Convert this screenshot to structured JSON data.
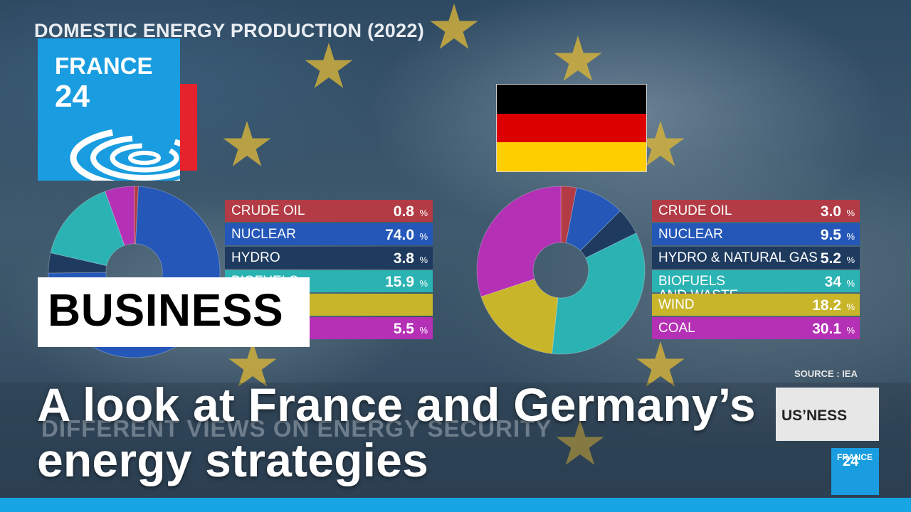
{
  "slide_title": "DOMESTIC ENERGY PRODUCTION (2022)",
  "logo": {
    "line1": "FRANCE",
    "line2": "24"
  },
  "mini_logo": {
    "line1": "FRANCE",
    "line2": "24"
  },
  "category_badge": "BUSINESS",
  "background_programme_label": "DIFFERENT VIEWS ON ENERGY SECURITY",
  "background_business_label": "US’NESS",
  "source": "SOURCE : IEA",
  "headline": "A look at France and Germany’s energy strategies",
  "colors": {
    "crude_oil": "#b23b45",
    "nuclear": "#2457b8",
    "hydro": "#1e3a5f",
    "biofuels": "#2bb3b3",
    "wind": "#c8b52a",
    "coal": "#b430b4",
    "accent": "#17a6e3"
  },
  "germany_flag": [
    "#000000",
    "#dd0000",
    "#ffce00"
  ],
  "chart_data": [
    {
      "type": "pie",
      "title": "",
      "categories": [
        "CRUDE OIL",
        "NUCLEAR",
        "HYDRO",
        "BIOFUELS",
        "",
        ""
      ],
      "values": [
        0.8,
        74.0,
        3.8,
        15.9,
        null,
        5.5
      ],
      "display": [
        "0.8",
        "74.0",
        "3.8",
        "15.9",
        "",
        "5.5"
      ],
      "unit": "%"
    },
    {
      "type": "pie",
      "title": "",
      "categories": [
        "CRUDE OIL",
        "NUCLEAR",
        "HYDRO & NATURAL GAS",
        "BIOFUELS AND WASTE",
        "WIND",
        "COAL"
      ],
      "values": [
        3.0,
        9.5,
        5.2,
        34,
        18.2,
        30.1
      ],
      "display": [
        "3.0",
        "9.5",
        "5.2",
        "34",
        "18.2",
        "30.1"
      ],
      "unit": "%"
    }
  ]
}
